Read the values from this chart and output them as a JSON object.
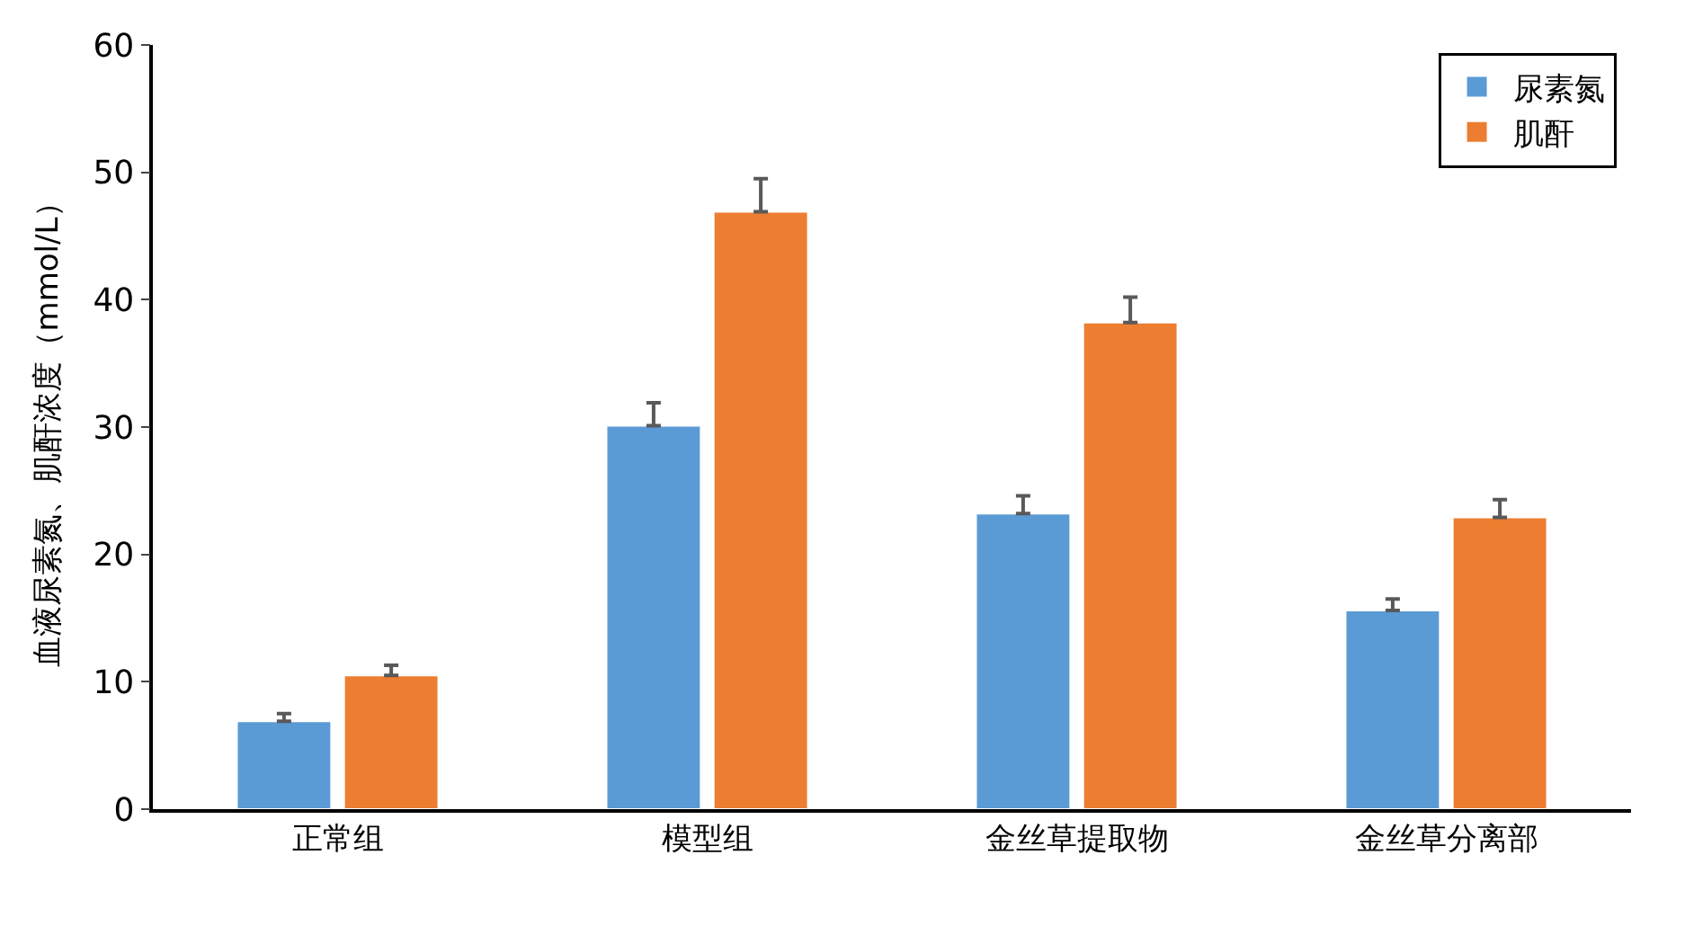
{
  "chart_data": {
    "type": "bar",
    "ylabel": "血液尿素氮、肌酐浓度（mmol/L）",
    "categories": [
      "正常组",
      "模型组",
      "金丝草提取物",
      "金丝草分离部"
    ],
    "series": [
      {
        "name": "尿素氮",
        "color": "#5b9bd5",
        "values": [
          6.9,
          30.1,
          23.2,
          15.6
        ],
        "errors": [
          [
            6.9,
            7.5
          ],
          [
            30.1,
            31.9
          ],
          [
            23.2,
            24.6
          ],
          [
            15.6,
            16.5
          ]
        ]
      },
      {
        "name": "肌酐",
        "color": "#ed7d31",
        "values": [
          10.5,
          46.9,
          38.2,
          22.9
        ],
        "errors": [
          [
            10.5,
            11.3
          ],
          [
            46.9,
            49.5
          ],
          [
            38.2,
            40.2
          ],
          [
            22.9,
            24.3
          ]
        ]
      }
    ],
    "ylim": [
      0,
      60
    ],
    "yticks": [
      0,
      10,
      20,
      30,
      40,
      50,
      60
    ],
    "legend": "top right"
  }
}
